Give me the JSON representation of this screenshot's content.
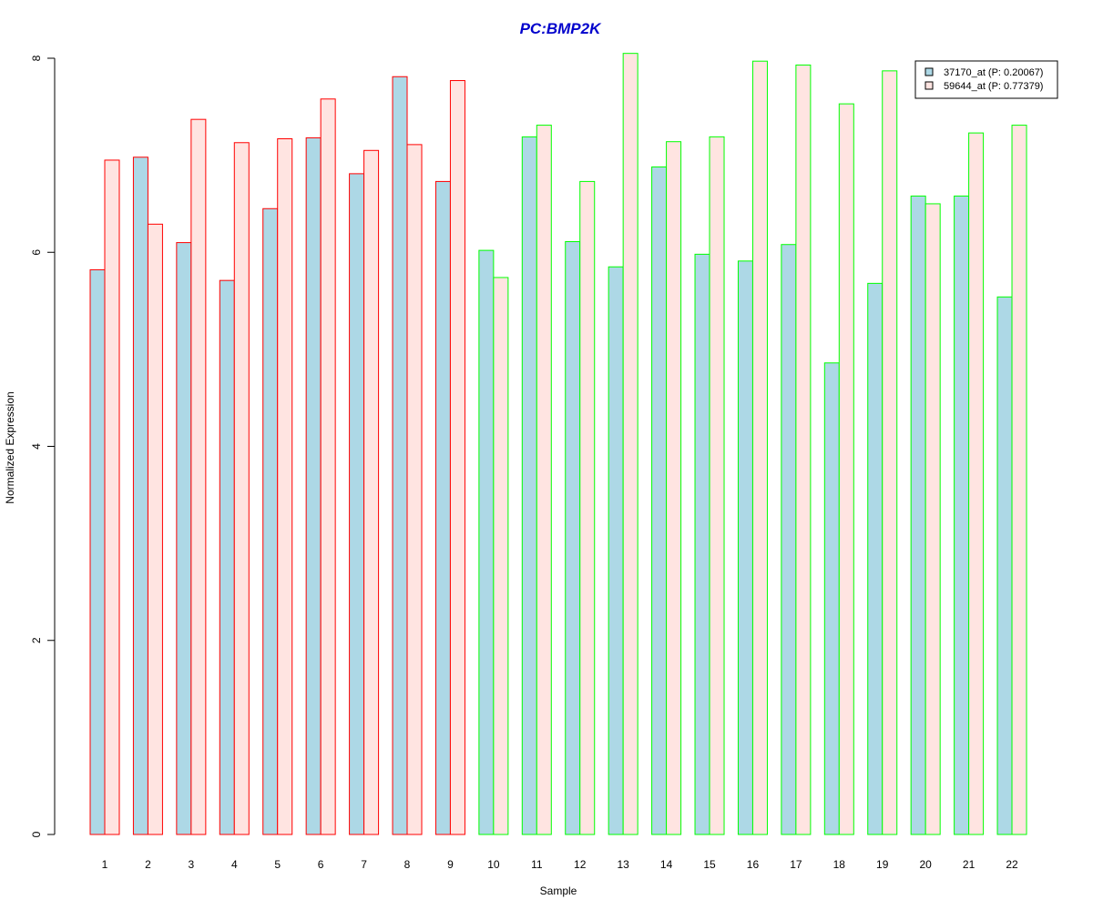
{
  "chart_data": {
    "type": "bar",
    "title": "PC:BMP2K",
    "xlabel": "Sample",
    "ylabel": "Normalized Expression",
    "ylim": [
      0,
      8
    ],
    "yticks": [
      0,
      2,
      4,
      6,
      8
    ],
    "grid": false,
    "legend_position": "top-right",
    "categories": [
      "1",
      "2",
      "3",
      "4",
      "5",
      "6",
      "7",
      "8",
      "9",
      "10",
      "11",
      "12",
      "13",
      "14",
      "15",
      "16",
      "17",
      "18",
      "19",
      "20",
      "21",
      "22"
    ],
    "series": [
      {
        "name": "37170_at (P: 0.20067)",
        "fill": "#add8e6",
        "values": [
          5.82,
          6.98,
          6.1,
          5.71,
          6.45,
          7.18,
          6.81,
          7.81,
          6.73,
          6.02,
          7.19,
          6.11,
          5.85,
          6.88,
          5.98,
          5.91,
          6.08,
          4.86,
          5.68,
          6.58,
          6.58,
          5.54
        ]
      },
      {
        "name": "59644_at (P: 0.77379)",
        "fill": "#ffe4e1",
        "values": [
          6.95,
          6.29,
          7.37,
          7.13,
          7.17,
          7.58,
          7.05,
          7.11,
          7.77,
          5.74,
          7.31,
          6.73,
          8.05,
          7.14,
          7.19,
          7.97,
          7.93,
          7.53,
          7.87,
          6.5,
          7.23,
          7.31
        ]
      }
    ],
    "group_border_colors": [
      "#ff0000",
      "#ff0000",
      "#ff0000",
      "#ff0000",
      "#ff0000",
      "#ff0000",
      "#ff0000",
      "#ff0000",
      "#ff0000",
      "#00ff00",
      "#00ff00",
      "#00ff00",
      "#00ff00",
      "#00ff00",
      "#00ff00",
      "#00ff00",
      "#00ff00",
      "#00ff00",
      "#00ff00",
      "#00ff00",
      "#00ff00",
      "#00ff00"
    ],
    "title_color": "#0000cc"
  }
}
